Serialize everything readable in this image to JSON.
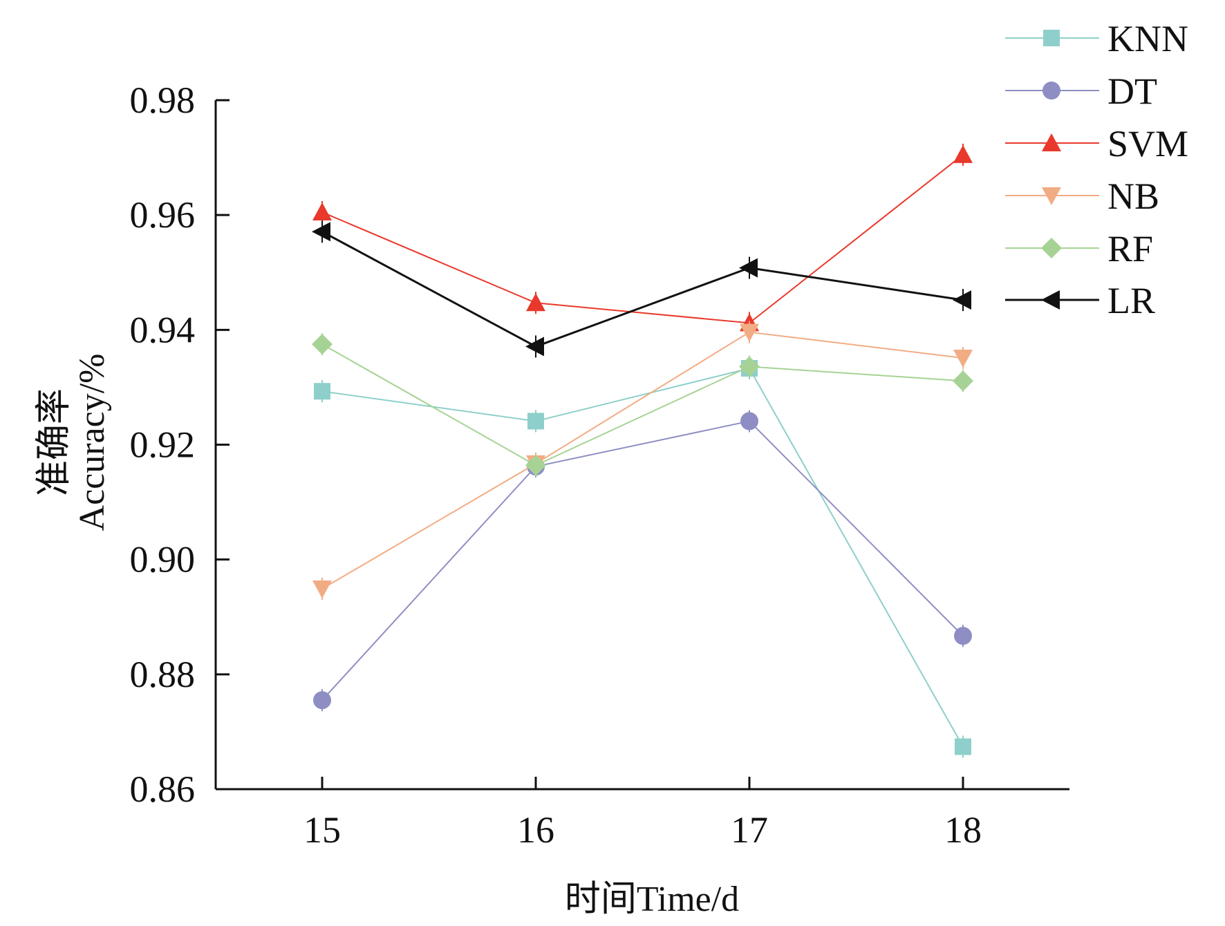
{
  "chart_data": {
    "type": "line",
    "title": "",
    "xlabel": "时间Time/d",
    "ylabel_cn": "准确率",
    "ylabel": "Accuracy/%",
    "x": [
      15,
      16,
      17,
      18
    ],
    "x_tick_labels": [
      "15",
      "16",
      "17",
      "18"
    ],
    "xlim": [
      14.5,
      18.5
    ],
    "ylim": [
      0.86,
      0.98
    ],
    "y_ticks": [
      0.86,
      0.88,
      0.9,
      0.92,
      0.94,
      0.96,
      0.98
    ],
    "y_tick_labels": [
      "0.86",
      "0.88",
      "0.90",
      "0.92",
      "0.94",
      "0.96",
      "0.98"
    ],
    "grid": false,
    "legend_position": "top-right",
    "series": [
      {
        "name": "KNN",
        "color": "#8ecfcb",
        "marker": "square",
        "values": [
          0.9293,
          0.9241,
          0.9333,
          0.8674
        ]
      },
      {
        "name": "DT",
        "color": "#8e8ec4",
        "marker": "circle",
        "values": [
          0.8755,
          0.9162,
          0.9241,
          0.8867
        ]
      },
      {
        "name": "SVM",
        "color": "#e8392c",
        "marker": "triangle-up",
        "values": [
          0.9605,
          0.9447,
          0.9412,
          0.9705
        ]
      },
      {
        "name": "NB",
        "color": "#f2ac84",
        "marker": "triangle-down",
        "values": [
          0.8949,
          0.9167,
          0.9396,
          0.9351
        ]
      },
      {
        "name": "RF",
        "color": "#a6d395",
        "marker": "diamond",
        "values": [
          0.9375,
          0.9164,
          0.9336,
          0.9311
        ]
      },
      {
        "name": "LR",
        "color": "#111111",
        "marker": "triangle-left",
        "values": [
          0.9571,
          0.9371,
          0.9508,
          0.9452
        ]
      }
    ]
  }
}
